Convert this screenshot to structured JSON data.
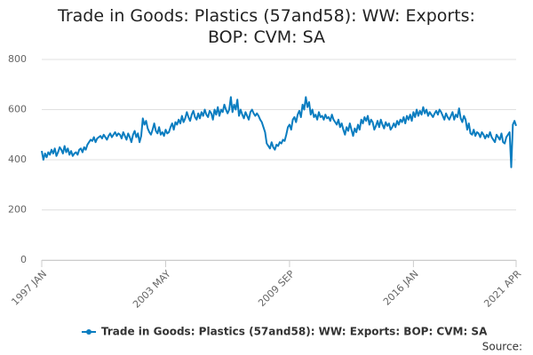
{
  "chart_data": {
    "type": "line",
    "title": "Trade in Goods: Plastics (57and58): WW: Exports: BOP: CVM: SA",
    "source": "Source:",
    "categories": [
      "1997 JAN",
      null,
      null,
      null,
      null,
      null,
      null,
      null,
      null,
      null,
      null,
      null,
      null,
      null,
      null,
      null,
      null,
      null,
      null,
      null,
      null,
      null,
      null,
      null,
      null,
      null,
      null,
      null,
      null,
      null,
      null,
      null,
      null,
      null,
      null,
      null,
      null,
      null,
      null,
      null,
      null,
      null,
      null,
      null,
      null,
      null,
      null,
      null,
      null,
      null,
      null,
      null,
      null,
      null,
      null,
      null,
      null,
      null,
      null,
      null,
      null,
      null,
      null,
      null,
      null,
      null,
      null,
      null,
      null,
      null,
      null,
      null,
      null,
      null,
      null,
      null,
      "2003 MAY",
      null,
      null,
      null,
      null,
      null,
      null,
      null,
      null,
      null,
      null,
      null,
      null,
      null,
      null,
      null,
      null,
      null,
      null,
      null,
      null,
      null,
      null,
      null,
      null,
      null,
      null,
      null,
      null,
      null,
      null,
      null,
      null,
      null,
      null,
      null,
      null,
      null,
      null,
      null,
      null,
      null,
      null,
      null,
      null,
      null,
      null,
      null,
      null,
      null,
      null,
      null,
      null,
      null,
      null,
      null,
      null,
      null,
      null,
      null,
      null,
      null,
      null,
      null,
      null,
      null,
      null,
      null,
      null,
      null,
      null,
      null,
      null,
      null,
      null,
      null,
      "2009 SEP",
      null,
      null,
      null,
      null,
      null,
      null,
      null,
      null,
      null,
      null,
      null,
      null,
      null,
      null,
      null,
      null,
      null,
      null,
      null,
      null,
      null,
      null,
      null,
      null,
      null,
      null,
      null,
      null,
      null,
      null,
      null,
      null,
      null,
      null,
      null,
      null,
      null,
      null,
      null,
      null,
      null,
      null,
      null,
      null,
      null,
      null,
      null,
      null,
      null,
      null,
      null,
      null,
      null,
      null,
      null,
      null,
      null,
      null,
      null,
      null,
      null,
      null,
      null,
      null,
      null,
      null,
      null,
      null,
      null,
      null,
      null,
      null,
      null,
      null,
      null,
      "2016 JAN",
      null,
      null,
      null,
      null,
      null,
      null,
      null,
      null,
      null,
      null,
      null,
      null,
      null,
      null,
      null,
      null,
      null,
      null,
      null,
      null,
      null,
      null,
      null,
      null,
      null,
      null,
      null,
      null,
      null,
      null,
      null,
      null,
      null,
      null,
      null,
      null,
      null,
      null,
      null,
      null,
      null,
      null,
      null,
      null,
      null,
      null,
      null,
      null,
      null,
      null,
      null,
      null,
      null,
      null,
      null,
      null,
      null,
      null,
      null,
      null,
      null,
      null,
      "2021 APR"
    ],
    "series": [
      {
        "name": "Trade in Goods: Plastics (57and58): WW: Exports: BOP: CVM: SA",
        "color": "#0b7dc0",
        "values": [
          435,
          400,
          425,
          410,
          430,
          420,
          440,
          425,
          445,
          415,
          430,
          450,
          440,
          425,
          455,
          430,
          445,
          420,
          435,
          415,
          425,
          430,
          420,
          440,
          445,
          430,
          450,
          440,
          460,
          470,
          480,
          475,
          490,
          470,
          485,
          490,
          495,
          485,
          500,
          490,
          480,
          495,
          505,
          490,
          500,
          510,
          495,
          505,
          500,
          485,
          510,
          495,
          480,
          505,
          490,
          470,
          500,
          515,
          490,
          505,
          470,
          495,
          565,
          540,
          555,
          525,
          510,
          500,
          520,
          545,
          515,
          505,
          530,
          500,
          510,
          495,
          520,
          505,
          510,
          530,
          545,
          520,
          550,
          540,
          560,
          545,
          575,
          550,
          565,
          590,
          570,
          555,
          580,
          595,
          570,
          560,
          585,
          565,
          590,
          575,
          600,
          580,
          570,
          595,
          585,
          560,
          600,
          580,
          610,
          575,
          600,
          590,
          620,
          600,
          585,
          600,
          650,
          590,
          620,
          600,
          640,
          575,
          600,
          580,
          565,
          590,
          575,
          560,
          590,
          600,
          585,
          575,
          585,
          575,
          560,
          550,
          530,
          510,
          465,
          455,
          445,
          470,
          450,
          440,
          460,
          455,
          470,
          465,
          480,
          475,
          500,
          530,
          540,
          520,
          560,
          570,
          550,
          580,
          595,
          570,
          620,
          600,
          650,
          610,
          630,
          580,
          600,
          570,
          580,
          560,
          590,
          570,
          575,
          560,
          580,
          565,
          570,
          555,
          580,
          560,
          550,
          540,
          560,
          530,
          545,
          520,
          500,
          530,
          515,
          545,
          520,
          495,
          525,
          510,
          540,
          520,
          560,
          545,
          570,
          555,
          575,
          540,
          560,
          550,
          520,
          535,
          555,
          530,
          560,
          540,
          525,
          550,
          535,
          545,
          520,
          530,
          545,
          530,
          555,
          540,
          560,
          550,
          570,
          545,
          575,
          560,
          580,
          555,
          590,
          570,
          600,
          575,
          595,
          580,
          610,
          585,
          600,
          575,
          590,
          580,
          570,
          585,
          595,
          580,
          600,
          590,
          575,
          560,
          585,
          570,
          560,
          575,
          590,
          560,
          580,
          570,
          605,
          565,
          550,
          575,
          560,
          520,
          545,
          505,
          500,
          520,
          495,
          510,
          505,
          490,
          510,
          500,
          485,
          500,
          490,
          510,
          490,
          480,
          470,
          500,
          490,
          480,
          505,
          470,
          465,
          490,
          500,
          510,
          370,
          540,
          555,
          535
        ]
      }
    ],
    "ylim": [
      0,
      800
    ],
    "yticks": [
      0,
      200,
      400,
      600,
      800
    ],
    "grid": true
  }
}
